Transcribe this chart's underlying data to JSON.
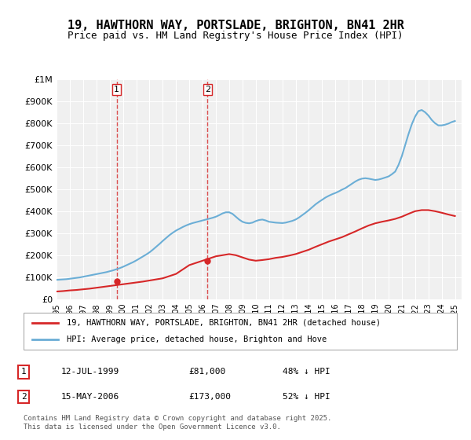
{
  "title": "19, HAWTHORN WAY, PORTSLADE, BRIGHTON, BN41 2HR",
  "subtitle": "Price paid vs. HM Land Registry's House Price Index (HPI)",
  "title_fontsize": 11,
  "subtitle_fontsize": 9,
  "background_color": "#ffffff",
  "plot_bg_color": "#f0f0f0",
  "grid_color": "#ffffff",
  "ylabel": "",
  "xlabel": "",
  "ylim": [
    0,
    1000000
  ],
  "yticks": [
    0,
    100000,
    200000,
    300000,
    400000,
    500000,
    600000,
    700000,
    800000,
    900000,
    1000000
  ],
  "ytick_labels": [
    "£0",
    "£100K",
    "£200K",
    "£300K",
    "£400K",
    "£500K",
    "£600K",
    "£700K",
    "£800K",
    "£900K",
    "£1M"
  ],
  "xlim_start": 1995.0,
  "xlim_end": 2025.5,
  "xticks": [
    1995,
    1996,
    1997,
    1998,
    1999,
    2000,
    2001,
    2002,
    2003,
    2004,
    2005,
    2006,
    2007,
    2008,
    2009,
    2010,
    2011,
    2012,
    2013,
    2014,
    2015,
    2016,
    2017,
    2018,
    2019,
    2020,
    2021,
    2022,
    2023,
    2024,
    2025
  ],
  "hpi_color": "#6baed6",
  "price_color": "#d62728",
  "vline_color": "#d62728",
  "marker1_year": 1999.53,
  "marker1_price": 81000,
  "marker2_year": 2006.37,
  "marker2_price": 173000,
  "legend_label_red": "19, HAWTHORN WAY, PORTSLADE, BRIGHTON, BN41 2HR (detached house)",
  "legend_label_blue": "HPI: Average price, detached house, Brighton and Hove",
  "table_entries": [
    {
      "num": "1",
      "date": "12-JUL-1999",
      "price": "£81,000",
      "hpi": "48% ↓ HPI"
    },
    {
      "num": "2",
      "date": "15-MAY-2006",
      "price": "£173,000",
      "hpi": "52% ↓ HPI"
    }
  ],
  "footer": "Contains HM Land Registry data © Crown copyright and database right 2025.\nThis data is licensed under the Open Government Licence v3.0.",
  "hpi_x": [
    1995.0,
    1995.25,
    1995.5,
    1995.75,
    1996.0,
    1996.25,
    1996.5,
    1996.75,
    1997.0,
    1997.25,
    1997.5,
    1997.75,
    1998.0,
    1998.25,
    1998.5,
    1998.75,
    1999.0,
    1999.25,
    1999.5,
    1999.75,
    2000.0,
    2000.25,
    2000.5,
    2000.75,
    2001.0,
    2001.25,
    2001.5,
    2001.75,
    2002.0,
    2002.25,
    2002.5,
    2002.75,
    2003.0,
    2003.25,
    2003.5,
    2003.75,
    2004.0,
    2004.25,
    2004.5,
    2004.75,
    2005.0,
    2005.25,
    2005.5,
    2005.75,
    2006.0,
    2006.25,
    2006.5,
    2006.75,
    2007.0,
    2007.25,
    2007.5,
    2007.75,
    2008.0,
    2008.25,
    2008.5,
    2008.75,
    2009.0,
    2009.25,
    2009.5,
    2009.75,
    2010.0,
    2010.25,
    2010.5,
    2010.75,
    2011.0,
    2011.25,
    2011.5,
    2011.75,
    2012.0,
    2012.25,
    2012.5,
    2012.75,
    2013.0,
    2013.25,
    2013.5,
    2013.75,
    2014.0,
    2014.25,
    2014.5,
    2014.75,
    2015.0,
    2015.25,
    2015.5,
    2015.75,
    2016.0,
    2016.25,
    2016.5,
    2016.75,
    2017.0,
    2017.25,
    2017.5,
    2017.75,
    2018.0,
    2018.25,
    2018.5,
    2018.75,
    2019.0,
    2019.25,
    2019.5,
    2019.75,
    2020.0,
    2020.25,
    2020.5,
    2020.75,
    2021.0,
    2021.25,
    2021.5,
    2021.75,
    2022.0,
    2022.25,
    2022.5,
    2022.75,
    2023.0,
    2023.25,
    2023.5,
    2023.75,
    2024.0,
    2024.25,
    2024.5,
    2024.75,
    2025.0
  ],
  "hpi_y": [
    88000,
    89000,
    90000,
    91000,
    93000,
    95000,
    97000,
    99000,
    102000,
    105000,
    108000,
    111000,
    114000,
    117000,
    120000,
    123000,
    127000,
    131000,
    136000,
    141000,
    147000,
    154000,
    161000,
    168000,
    176000,
    185000,
    194000,
    203000,
    213000,
    225000,
    238000,
    251000,
    265000,
    278000,
    291000,
    302000,
    312000,
    320000,
    328000,
    335000,
    341000,
    346000,
    350000,
    354000,
    358000,
    362000,
    366000,
    370000,
    375000,
    382000,
    390000,
    395000,
    395000,
    388000,
    375000,
    362000,
    352000,
    347000,
    345000,
    348000,
    355000,
    360000,
    362000,
    358000,
    352000,
    350000,
    348000,
    347000,
    346000,
    348000,
    352000,
    356000,
    362000,
    371000,
    382000,
    393000,
    405000,
    418000,
    431000,
    442000,
    452000,
    462000,
    470000,
    477000,
    483000,
    490000,
    498000,
    505000,
    515000,
    525000,
    535000,
    543000,
    548000,
    550000,
    548000,
    545000,
    542000,
    544000,
    548000,
    553000,
    558000,
    568000,
    580000,
    610000,
    650000,
    700000,
    750000,
    795000,
    830000,
    855000,
    860000,
    850000,
    835000,
    815000,
    800000,
    790000,
    790000,
    793000,
    798000,
    805000,
    810000
  ],
  "price_x": [
    1995.0,
    1995.5,
    1996.0,
    1996.5,
    1997.0,
    1997.5,
    1998.0,
    1998.5,
    1999.0,
    1999.5,
    2000.0,
    2000.5,
    2001.0,
    2001.5,
    2002.0,
    2002.5,
    2003.0,
    2003.5,
    2004.0,
    2004.5,
    2005.0,
    2005.5,
    2006.0,
    2006.5,
    2007.0,
    2007.5,
    2008.0,
    2008.5,
    2009.0,
    2009.5,
    2010.0,
    2010.5,
    2011.0,
    2011.5,
    2012.0,
    2012.5,
    2013.0,
    2013.5,
    2014.0,
    2014.5,
    2015.0,
    2015.5,
    2016.0,
    2016.5,
    2017.0,
    2017.5,
    2018.0,
    2018.5,
    2019.0,
    2019.5,
    2020.0,
    2020.5,
    2021.0,
    2021.5,
    2022.0,
    2022.5,
    2023.0,
    2023.5,
    2024.0,
    2024.5,
    2025.0
  ],
  "price_y": [
    35000,
    37000,
    40000,
    42000,
    45000,
    48000,
    52000,
    56000,
    60000,
    64000,
    68000,
    72000,
    76000,
    80000,
    85000,
    90000,
    95000,
    105000,
    115000,
    135000,
    155000,
    165000,
    175000,
    185000,
    195000,
    200000,
    205000,
    200000,
    190000,
    180000,
    175000,
    178000,
    182000,
    188000,
    192000,
    198000,
    205000,
    215000,
    225000,
    238000,
    250000,
    262000,
    272000,
    282000,
    295000,
    308000,
    322000,
    335000,
    345000,
    352000,
    358000,
    365000,
    375000,
    388000,
    400000,
    405000,
    405000,
    400000,
    393000,
    385000,
    378000
  ]
}
